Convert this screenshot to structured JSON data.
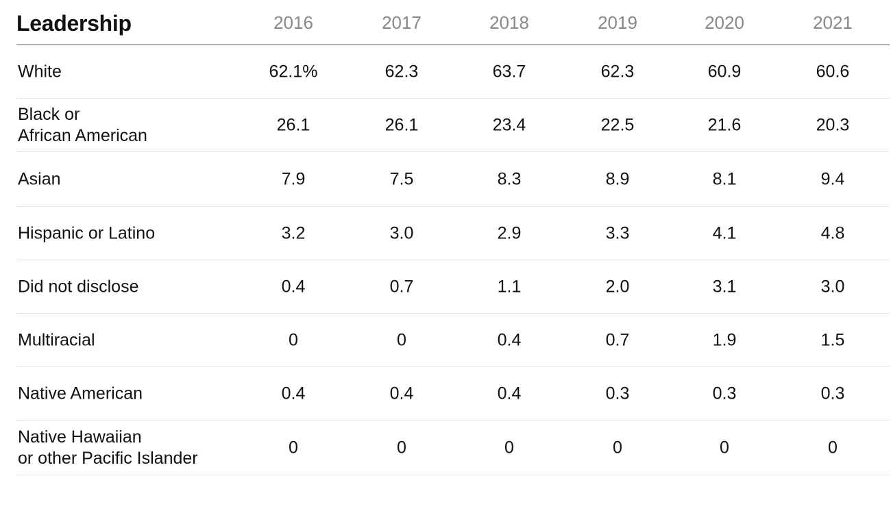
{
  "chart_data": {
    "type": "table",
    "title": "Leadership",
    "columns": [
      "2016",
      "2017",
      "2018",
      "2019",
      "2020",
      "2021"
    ],
    "rows": [
      {
        "label": [
          "White"
        ],
        "values": [
          "62.1%",
          "62.3",
          "63.7",
          "62.3",
          "60.9",
          "60.6"
        ]
      },
      {
        "label": [
          "Black or",
          "African American"
        ],
        "values": [
          "26.1",
          "26.1",
          "23.4",
          "22.5",
          "21.6",
          "20.3"
        ]
      },
      {
        "label": [
          "Asian"
        ],
        "values": [
          "7.9",
          "7.5",
          "8.3",
          "8.9",
          "8.1",
          "9.4"
        ]
      },
      {
        "label": [
          "Hispanic or Latino"
        ],
        "values": [
          "3.2",
          "3.0",
          "2.9",
          "3.3",
          "4.1",
          "4.8"
        ]
      },
      {
        "label": [
          "Did not disclose"
        ],
        "values": [
          "0.4",
          "0.7",
          "1.1",
          "2.0",
          "3.1",
          "3.0"
        ]
      },
      {
        "label": [
          "Multiracial"
        ],
        "values": [
          "0",
          "0",
          "0.4",
          "0.7",
          "1.9",
          "1.5"
        ]
      },
      {
        "label": [
          "Native American"
        ],
        "values": [
          "0.4",
          "0.4",
          "0.4",
          "0.3",
          "0.3",
          "0.3"
        ]
      },
      {
        "label": [
          "Native Hawaiian",
          "or other Pacific Islander"
        ],
        "values": [
          "0",
          "0",
          "0",
          "0",
          "0",
          "0"
        ]
      }
    ]
  }
}
